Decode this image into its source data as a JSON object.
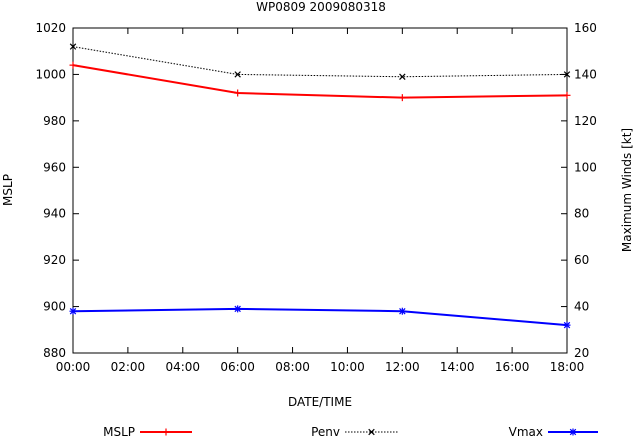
{
  "chart_data": {
    "type": "line",
    "title": "WP0809 2009080318",
    "xlabel": "DATE/TIME",
    "ylabel": "MSLP",
    "y2label": "Maximum Winds [kt]",
    "x": [
      "00:00",
      "06:00",
      "12:00",
      "18:00"
    ],
    "x_hours": [
      0,
      6,
      12,
      18
    ],
    "xticks": [
      "00:00",
      "02:00",
      "04:00",
      "06:00",
      "08:00",
      "10:00",
      "12:00",
      "14:00",
      "16:00",
      "18:00"
    ],
    "xlim": [
      0,
      18
    ],
    "ylim": [
      880,
      1020
    ],
    "yticks": [
      "880",
      "900",
      "920",
      "940",
      "960",
      "980",
      "1000",
      "1020"
    ],
    "y2lim": [
      20,
      160
    ],
    "y2ticks": [
      "20",
      "40",
      "60",
      "80",
      "100",
      "120",
      "140",
      "160"
    ],
    "grid": false,
    "legend_position": "bottom",
    "series": [
      {
        "name": "MSLP",
        "axis": "left",
        "color": "#ff0000",
        "style": "solid",
        "marker": "plus",
        "values": [
          1004,
          992,
          990,
          991
        ]
      },
      {
        "name": "Penv",
        "axis": "left",
        "color": "#000000",
        "style": "dotted",
        "marker": "cross",
        "values": [
          1012,
          1000,
          999,
          1000
        ]
      },
      {
        "name": "Vmax",
        "axis": "right",
        "color": "#0000ff",
        "style": "solid",
        "marker": "star",
        "values": [
          38,
          39,
          38,
          32
        ]
      }
    ]
  }
}
